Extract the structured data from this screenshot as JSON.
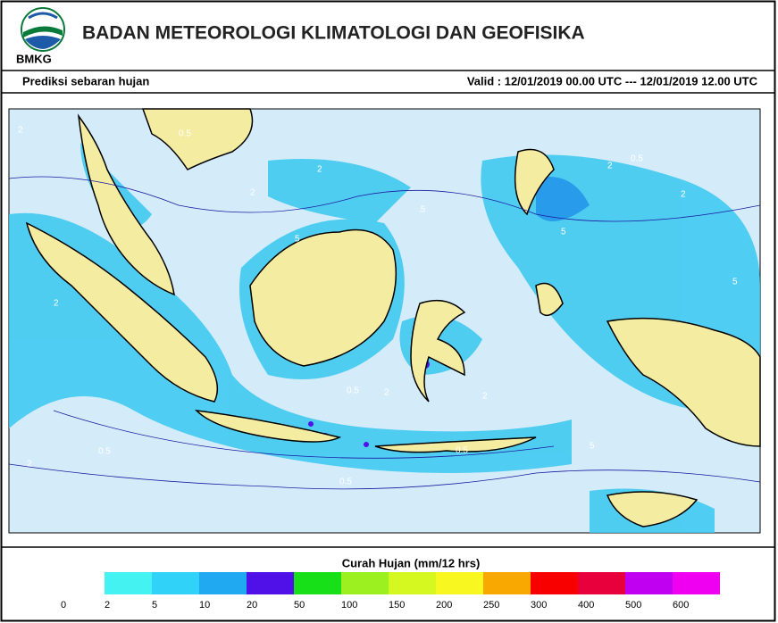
{
  "header": {
    "title": "BADAN METEOROLOGI KLIMATOLOGI DAN GEOFISIKA",
    "logo_text": "BMKG"
  },
  "subheader": {
    "left": "Prediksi sebaran hujan",
    "right": "Valid : 12/01/2019  00.00 UTC --- 12/01/2019  12.00 UTC"
  },
  "map": {
    "contour_labels": [
      "2",
      "0.5",
      "2",
      "5",
      "2",
      ".5",
      "5",
      "2",
      "0.5",
      "2",
      "0.5",
      "2",
      "5",
      "0.5",
      "2",
      "0.5",
      "2",
      "5",
      "2",
      "0.5"
    ]
  },
  "legend": {
    "title": "Curah Hujan (mm/12 hrs)",
    "levels": [
      0,
      2,
      5,
      10,
      20,
      50,
      100,
      150,
      200,
      250,
      300,
      400,
      500,
      600
    ],
    "colors": [
      "#44f2f2",
      "#30d2f8",
      "#20a8f0",
      "#5010e8",
      "#18e018",
      "#9cf020",
      "#d4f820",
      "#f8f820",
      "#f8a800",
      "#f80000",
      "#e8003c",
      "#c000f0",
      "#f000f0"
    ]
  }
}
